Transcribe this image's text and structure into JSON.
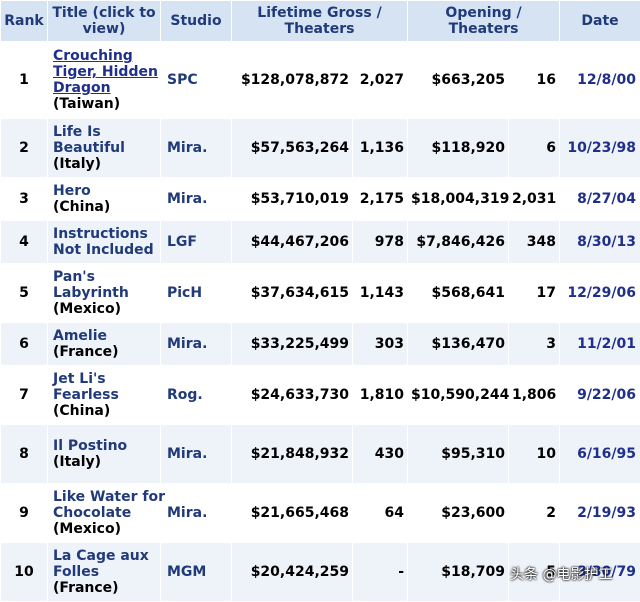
{
  "headers": {
    "rank": "Rank",
    "title": "Title (click to view)",
    "studio": "Studio",
    "gross": "Lifetime Gross / Theaters",
    "opening": "Opening / Theaters",
    "date": "Date"
  },
  "rows": [
    {
      "rank": "1",
      "title": [
        "Crouching",
        "Tiger, Hidden",
        "Dragon"
      ],
      "origin": "(Taiwan)",
      "studio": "SPC",
      "gross": "$128,078,872",
      "gross_theaters": "2,027",
      "opening": "$663,205",
      "opening_theaters": "16",
      "date": "12/8/00"
    },
    {
      "rank": "2",
      "title": [
        "Life Is",
        "Beautiful"
      ],
      "origin": "(Italy)",
      "studio": "Mira.",
      "gross": "$57,563,264",
      "gross_theaters": "1,136",
      "opening": "$118,920",
      "opening_theaters": "6",
      "date": "10/23/98"
    },
    {
      "rank": "3",
      "title": [
        "Hero"
      ],
      "origin": "(China)",
      "studio": "Mira.",
      "gross": "$53,710,019",
      "gross_theaters": "2,175",
      "opening": "$18,004,319",
      "opening_theaters": "2,031",
      "date": "8/27/04"
    },
    {
      "rank": "4",
      "title": [
        "Instructions",
        "Not Included"
      ],
      "origin": "",
      "studio": "LGF",
      "gross": "$44,467,206",
      "gross_theaters": "978",
      "opening": "$7,846,426",
      "opening_theaters": "348",
      "date": "8/30/13"
    },
    {
      "rank": "5",
      "title": [
        "Pan's",
        "Labyrinth"
      ],
      "origin": "(Mexico)",
      "studio": "PicH",
      "gross": "$37,634,615",
      "gross_theaters": "1,143",
      "opening": "$568,641",
      "opening_theaters": "17",
      "date": "12/29/06"
    },
    {
      "rank": "6",
      "title": [
        "Amelie"
      ],
      "origin": "(France)",
      "studio": "Mira.",
      "gross": "$33,225,499",
      "gross_theaters": "303",
      "opening": "$136,470",
      "opening_theaters": "3",
      "date": "11/2/01"
    },
    {
      "rank": "7",
      "title": [
        "Jet Li's",
        "Fearless"
      ],
      "origin": "(China)",
      "studio": "Rog.",
      "gross": "$24,633,730",
      "gross_theaters": "1,810",
      "opening": "$10,590,244",
      "opening_theaters": "1,806",
      "date": "9/22/06"
    },
    {
      "rank": "8",
      "title": [
        "Il Postino"
      ],
      "origin": "(Italy)",
      "studio": "Mira.",
      "gross": "$21,848,932",
      "gross_theaters": "430",
      "opening": "$95,310",
      "opening_theaters": "10",
      "date": "6/16/95"
    },
    {
      "rank": "9",
      "title": [
        "Like Water for",
        "Chocolate"
      ],
      "origin": "(Mexico)",
      "studio": "Mira.",
      "gross": "$21,665,468",
      "gross_theaters": "64",
      "opening": "$23,600",
      "opening_theaters": "2",
      "date": "2/19/93"
    },
    {
      "rank": "10",
      "title": [
        "La Cage aux",
        "Folles"
      ],
      "origin": "(France)",
      "studio": "MGM",
      "gross": "$20,424,259",
      "gross_theaters": "-",
      "opening": "$18,709",
      "opening_theaters": "5",
      "date": "3/30/79"
    }
  ],
  "watermark": "头条 @电影护工",
  "colors": {
    "header_bg": "#d6e3f3",
    "link": "#1f2f8a",
    "row_alt": "#eef2f9"
  }
}
